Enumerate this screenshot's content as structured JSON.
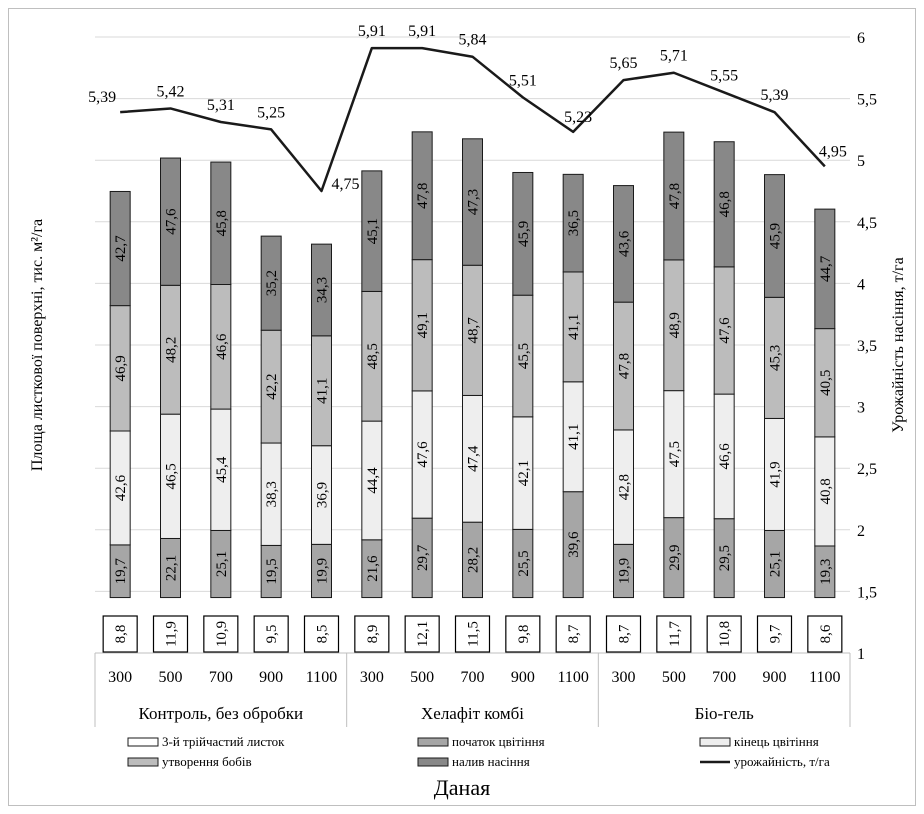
{
  "chart_data": {
    "type": "bar",
    "subtype": "stacked-bar-with-line",
    "xlabel": "Даная",
    "ylabel": "Площа листкової поверхні, тис. м²/га",
    "y2label": "Урожайність насіння, т/га",
    "y2lim": [
      1,
      6
    ],
    "y2ticks": [
      "1",
      "1,5",
      "2",
      "2,5",
      "3",
      "3,5",
      "4",
      "4,5",
      "5",
      "5,5",
      "6"
    ],
    "groups": [
      {
        "name": "Контроль, без обробки",
        "categories": [
          "300",
          "500",
          "700",
          "900",
          "1100"
        ]
      },
      {
        "name": "Хелафіт комбі",
        "categories": [
          "300",
          "500",
          "700",
          "900",
          "1100"
        ]
      },
      {
        "name": "Біо-гель",
        "categories": [
          "300",
          "500",
          "700",
          "900",
          "1100"
        ]
      }
    ],
    "series": [
      {
        "name": "3-й трійчастий листок",
        "color": "#ffffff",
        "values": [
          "8,8",
          "11,9",
          "10,9",
          "9,5",
          "8,5",
          "8,9",
          "12,1",
          "11,5",
          "9,8",
          "8,7",
          "8,7",
          "11,7",
          "10,8",
          "9,7",
          "8,6"
        ]
      },
      {
        "name": "початок цвітіння",
        "color": "#a6a6a6",
        "values": [
          "19,7",
          "22,1",
          "25,1",
          "19,5",
          "19,9",
          "21,6",
          "29,7",
          "28,2",
          "25,5",
          "39,6",
          "19,9",
          "29,9",
          "29,5",
          "25,1",
          "19,3"
        ]
      },
      {
        "name": "кінець цвітіння",
        "color": "#eeeeee",
        "values": [
          "42,6",
          "46,5",
          "45,4",
          "38,3",
          "36,9",
          "44,4",
          "47,6",
          "47,4",
          "42,1",
          "41,1",
          "42,8",
          "47,5",
          "46,6",
          "41,9",
          "40,8"
        ]
      },
      {
        "name": "утворення бобів",
        "color": "#bcbcbc",
        "values": [
          "46,9",
          "48,2",
          "46,6",
          "42,2",
          "41,1",
          "48,5",
          "49,1",
          "48,7",
          "45,5",
          "41,1",
          "47,8",
          "48,9",
          "47,6",
          "45,3",
          "40,5"
        ]
      },
      {
        "name": "налив насіння",
        "color": "#888888",
        "values": [
          "42,7",
          "47,6",
          "45,8",
          "35,2",
          "34,3",
          "45,1",
          "47,8",
          "47,3",
          "45,9",
          "36,5",
          "43,6",
          "47,8",
          "46,8",
          "45,9",
          "44,7"
        ]
      },
      {
        "name": "урожайність, т/га",
        "color": "#1a1a1a",
        "type": "line",
        "values": [
          5.39,
          5.42,
          5.31,
          5.25,
          4.75,
          5.91,
          5.91,
          5.84,
          5.51,
          5.23,
          5.65,
          5.71,
          5.55,
          5.39,
          4.95
        ],
        "labels": [
          "5,39",
          "5,42",
          "5,31",
          "5,25",
          "4,75",
          "5,91",
          "5,91",
          "5,84",
          "5,51",
          "5,23",
          "5,65",
          "5,71",
          "5,55",
          "5,39",
          "4,95"
        ]
      }
    ],
    "grid": true,
    "legend": "bottom"
  }
}
